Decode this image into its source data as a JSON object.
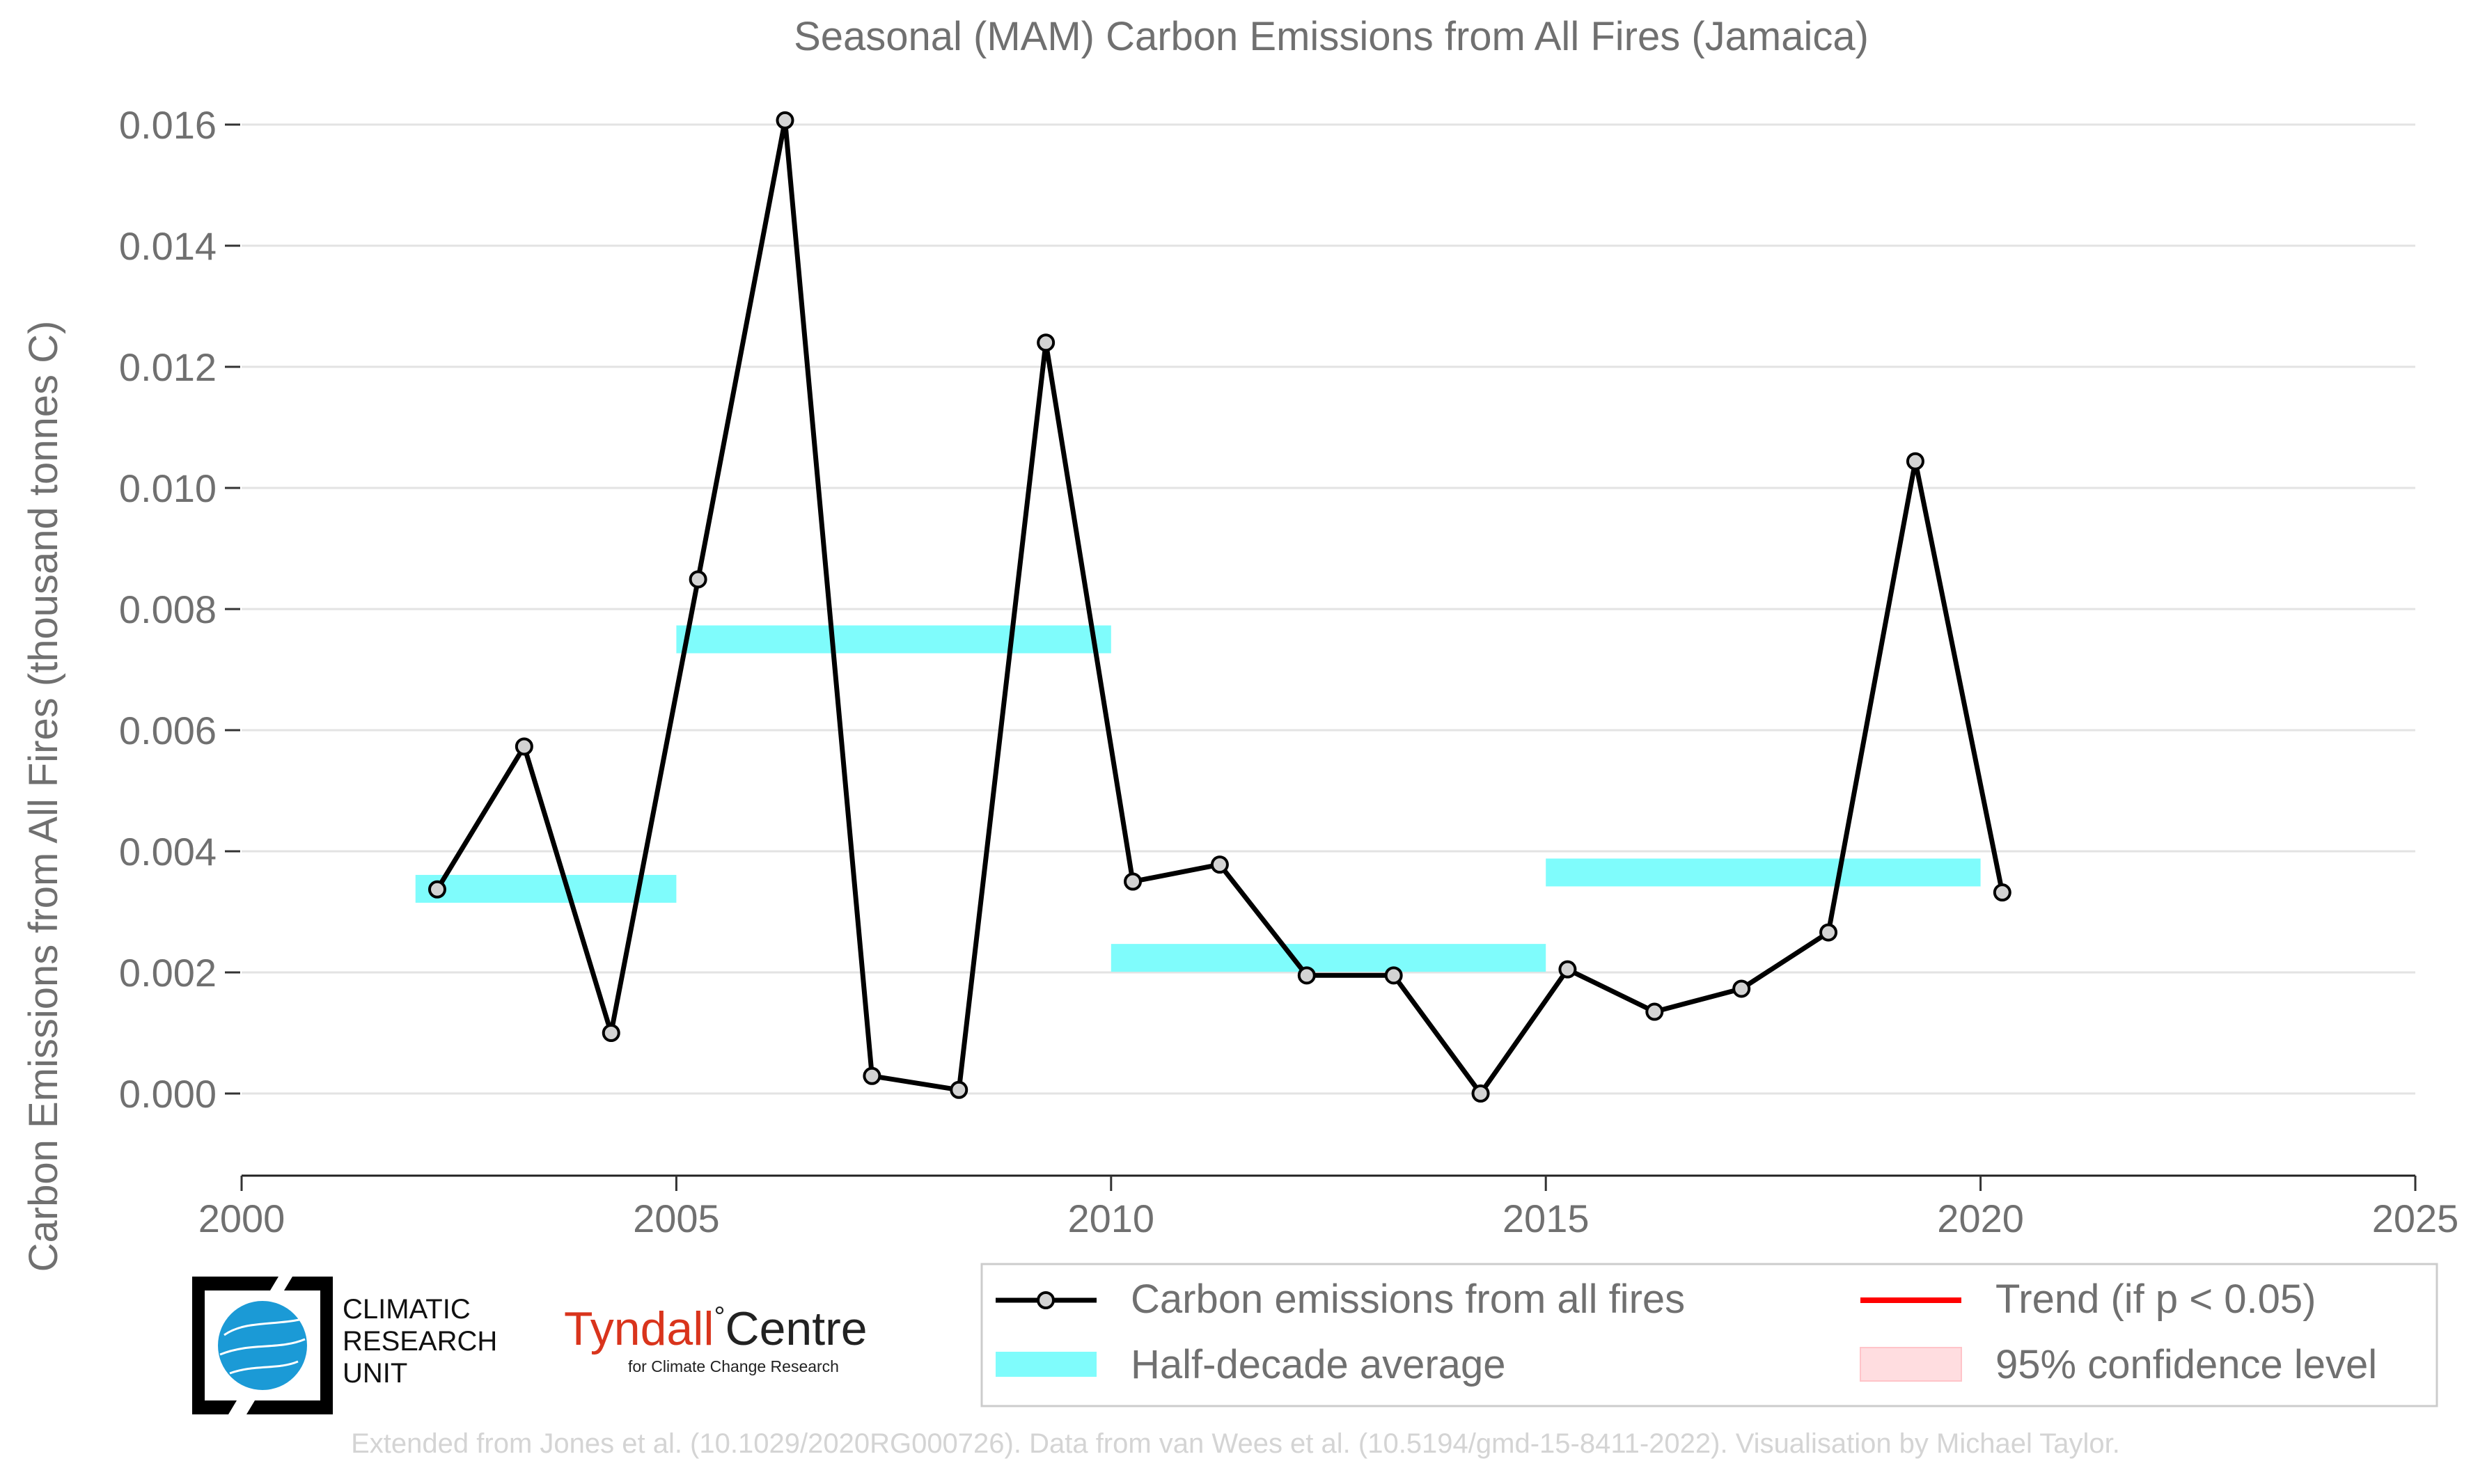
{
  "chart_data": {
    "type": "line",
    "title": "Seasonal (MAM) Carbon Emissions from All Fires (Jamaica)",
    "xlabel": "",
    "ylabel": "Carbon Emissions from All Fires (thousand tonnes C)",
    "xlim": [
      2000,
      2025
    ],
    "ylim": [
      -0.0012,
      0.0168
    ],
    "x_ticks": [
      "2000",
      "2005",
      "2010",
      "2015",
      "2020",
      "2025"
    ],
    "y_ticks": [
      "0.000",
      "0.002",
      "0.004",
      "0.006",
      "0.008",
      "0.010",
      "0.012",
      "0.014",
      "0.016"
    ],
    "grid": "horizontal",
    "series": [
      {
        "name": "Carbon emissions from all fires",
        "color": "#000000",
        "marker_fill": "#d3d3d3",
        "x": [
          2002.25,
          2003.25,
          2004.25,
          2005.25,
          2006.25,
          2007.25,
          2008.25,
          2009.25,
          2010.25,
          2011.25,
          2012.25,
          2013.25,
          2014.25,
          2015.25,
          2016.25,
          2017.25,
          2018.25,
          2019.25,
          2020.25
        ],
        "y": [
          0.00337,
          0.00573,
          0.001,
          0.00849,
          0.01607,
          0.00029,
          6e-05,
          0.0124,
          0.0035,
          0.00378,
          0.00195,
          0.00195,
          0.0,
          0.00205,
          0.00135,
          0.00173,
          0.00266,
          0.01044,
          0.00332
        ]
      }
    ],
    "half_decade_average": {
      "name": "Half-decade average",
      "color": "#7ffcfc",
      "segments": [
        {
          "x0": 2002,
          "x1": 2005,
          "y": 0.00338
        },
        {
          "x0": 2005,
          "x1": 2010,
          "y": 0.0075
        },
        {
          "x0": 2010,
          "x1": 2015,
          "y": 0.00224
        },
        {
          "x0": 2015,
          "x1": 2020,
          "y": 0.00365
        }
      ]
    },
    "legend": {
      "placement": "bottom-right",
      "entries": [
        {
          "label": "Carbon emissions from all fires",
          "kind": "line-marker",
          "color": "#000000"
        },
        {
          "label": "Trend (if p < 0.05)",
          "kind": "line",
          "color": "#ff0000"
        },
        {
          "label": "Half-decade average",
          "kind": "band",
          "color": "#7ffcfc"
        },
        {
          "label": "95% confidence level",
          "kind": "patch",
          "color": "#ffdde0"
        }
      ]
    }
  },
  "logos": {
    "cru_lines": [
      "CLIMATIC",
      "RESEARCH",
      "UNIT"
    ],
    "tyndall_main": "Tyndall",
    "tyndall_degree": "°",
    "tyndall_centre": "Centre",
    "tyndall_sub": "for Climate Change Research"
  },
  "credit": "Extended from Jones et al. (10.1029/2020RG000726). Data from van Wees et al. (10.5194/gmd-15-8411-2022). Visualisation by Michael Taylor."
}
